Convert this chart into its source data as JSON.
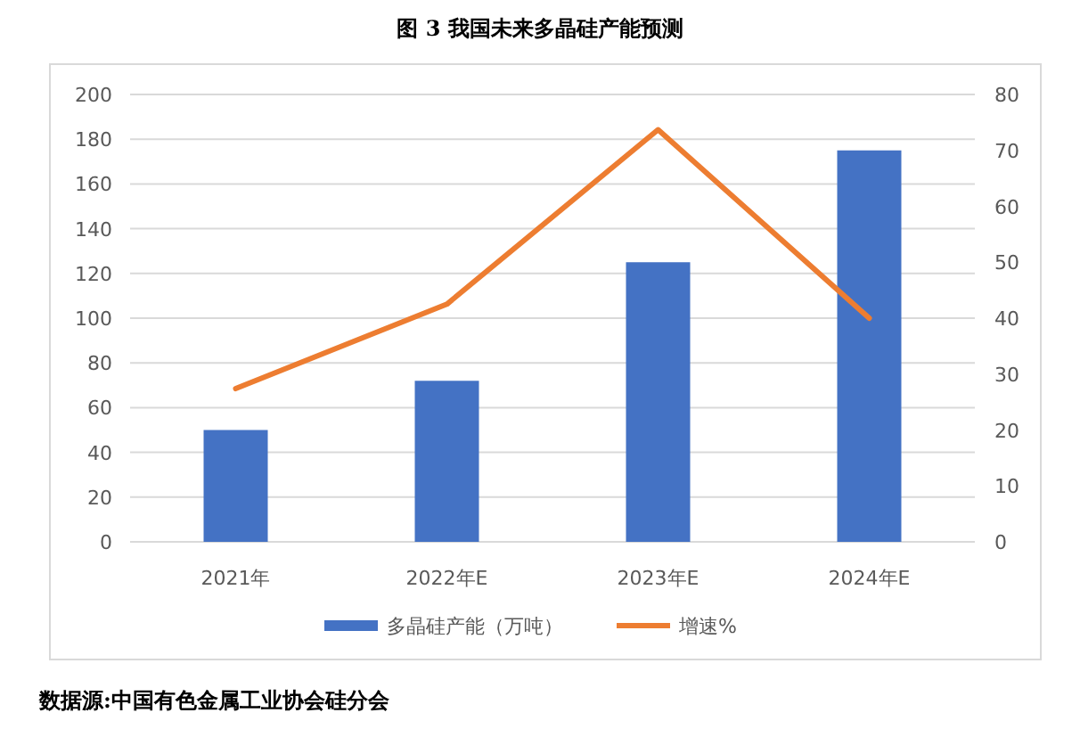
{
  "chart_data": {
    "type": "bar",
    "title": "图  3  我国未来多晶硅产能预测",
    "categories": [
      "2021年",
      "2022年E",
      "2023年E",
      "2024年E"
    ],
    "series": [
      {
        "name": "多晶硅产能（万吨）",
        "color": "#4472c4",
        "values": [
          50,
          72,
          125,
          175
        ]
      },
      {
        "name": "增速%",
        "color": "#ed7d31",
        "type": "line",
        "axis": "y2",
        "values": [
          27.4,
          42.5,
          73.7,
          40
        ]
      }
    ],
    "ylim": [
      0,
      200
    ],
    "yticks": [
      0,
      20,
      40,
      60,
      80,
      100,
      120,
      140,
      160,
      180,
      200
    ],
    "y2lim": [
      0,
      80
    ],
    "y2ticks": [
      0,
      10,
      20,
      30,
      40,
      50,
      60,
      70,
      80
    ],
    "grid": "y",
    "legend": "bottom",
    "marker": "none",
    "annotations": [
      "数据源:中国有色金属工业协会硅分会"
    ]
  }
}
